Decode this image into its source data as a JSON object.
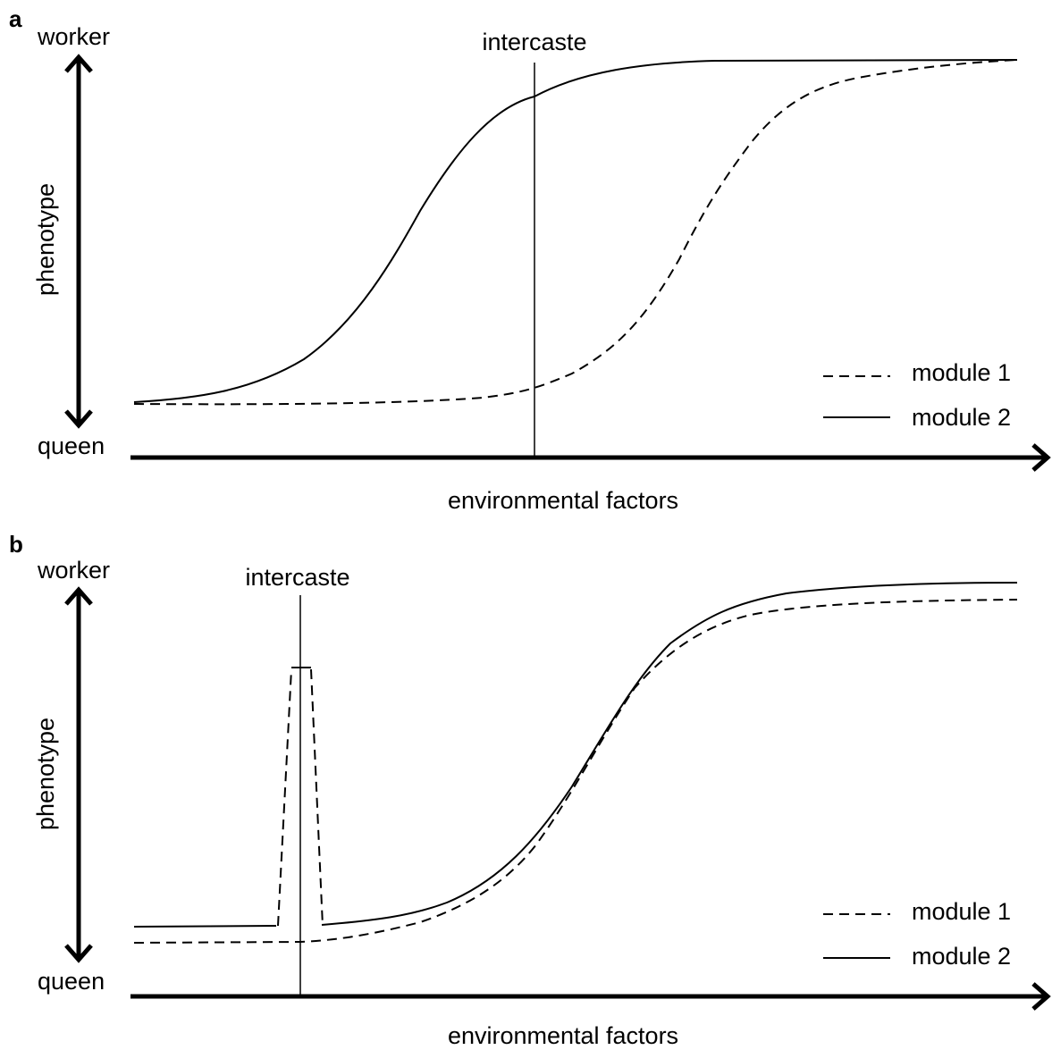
{
  "panels": [
    {
      "letter": "a",
      "y_top_label": "worker",
      "y_bottom_label": "queen",
      "y_axis_label": "phenotype",
      "x_axis_label": "environmental factors",
      "marker_label": "intercaste",
      "legend": [
        {
          "label": "module 1",
          "style": "dashed"
        },
        {
          "label": "module 2",
          "style": "solid"
        }
      ]
    },
    {
      "letter": "b",
      "y_top_label": "worker",
      "y_bottom_label": "queen",
      "y_axis_label": "phenotype",
      "x_axis_label": "environmental factors",
      "marker_label": "intercaste",
      "legend": [
        {
          "label": "module 1",
          "style": "dashed"
        },
        {
          "label": "module 2",
          "style": "solid"
        }
      ]
    }
  ],
  "colors": {
    "ink": "#000000",
    "background": "#ffffff"
  }
}
